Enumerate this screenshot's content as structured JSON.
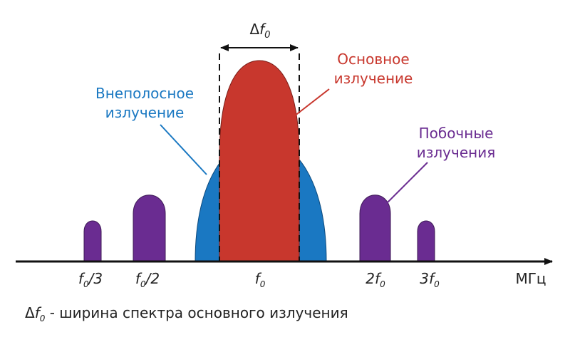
{
  "delta_label": [
    {
      "text": "Δ"
    },
    {
      "text": "f"
    },
    {
      "text": "0",
      "sub": true
    }
  ],
  "callouts": {
    "main": [
      "Основное",
      "излучение"
    ],
    "out_of_band": [
      "Внеполосное",
      "излучение"
    ],
    "spurious": [
      "Побочные",
      "излучения"
    ]
  },
  "axis": {
    "ticks": [
      [
        {
          "text": "f"
        },
        {
          "text": "0",
          "sub": true
        },
        {
          "text": "/3"
        }
      ],
      [
        {
          "text": "f"
        },
        {
          "text": "0",
          "sub": true
        },
        {
          "text": "/2"
        }
      ],
      [
        {
          "text": "f"
        },
        {
          "text": "0",
          "sub": true
        }
      ],
      [
        {
          "text": "2f"
        },
        {
          "text": "0",
          "sub": true
        }
      ],
      [
        {
          "text": "3f"
        },
        {
          "text": "0",
          "sub": true
        }
      ]
    ],
    "unit": "МГц"
  },
  "footnote": [
    {
      "text": "Δ"
    },
    {
      "text": "f"
    },
    {
      "text": "0",
      "sub": true
    },
    {
      "text": " - ширина спектра основного излучения"
    }
  ]
}
